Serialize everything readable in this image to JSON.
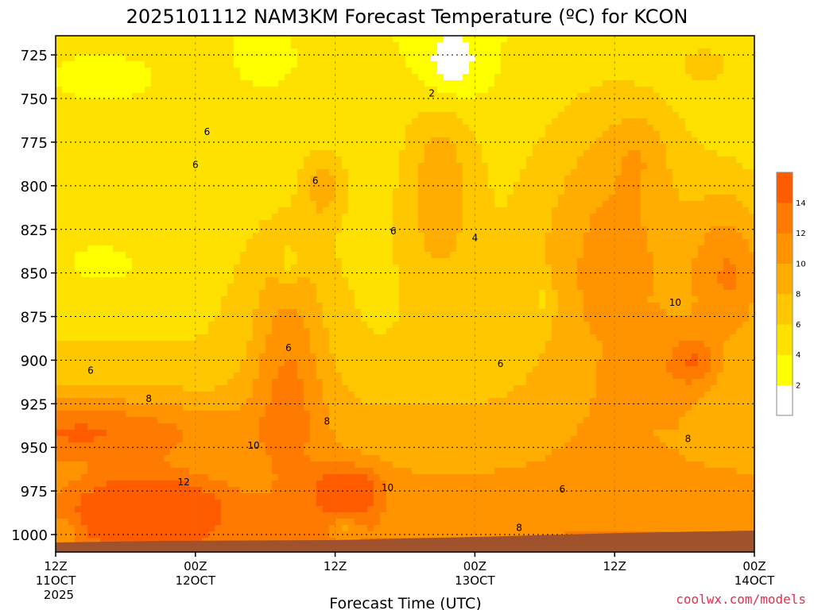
{
  "chart_data": {
    "type": "heatmap",
    "title": "2025101112 NAM3KM Forecast Temperature (ºC) for KCON",
    "xlabel": "Forecast Time (UTC)",
    "ylabel": "",
    "credit": "coolwx.com/models",
    "y_ticks": [
      "725",
      "750",
      "775",
      "800",
      "825",
      "850",
      "875",
      "900",
      "925",
      "950",
      "975",
      "1000"
    ],
    "y_tick_values": [
      725,
      750,
      775,
      800,
      825,
      850,
      875,
      900,
      925,
      950,
      975,
      1000
    ],
    "ylim": [
      1010,
      714
    ],
    "x_ticks": [
      {
        "hour": 0,
        "line1": "12Z",
        "line2": "11OCT",
        "line3": "2025"
      },
      {
        "hour": 12,
        "line1": "00Z",
        "line2": "12OCT",
        "line3": ""
      },
      {
        "hour": 24,
        "line1": "12Z",
        "line2": "",
        "line3": ""
      },
      {
        "hour": 36,
        "line1": "00Z",
        "line2": "13OCT",
        "line3": ""
      },
      {
        "hour": 48,
        "line1": "12Z",
        "line2": "",
        "line3": ""
      },
      {
        "hour": 60,
        "line1": "00Z",
        "line2": "14OCT",
        "line3": ""
      }
    ],
    "xlim": [
      0,
      60
    ],
    "grid": true,
    "colorbar": {
      "placement": "right",
      "levels": [
        0,
        2,
        4,
        6,
        8,
        10,
        12,
        14,
        16
      ],
      "colors": [
        "#ffffff",
        "#ffff00",
        "#ffe100",
        "#ffc700",
        "#ffad00",
        "#ff9400",
        "#ff7a00",
        "#ff5c00"
      ],
      "tick_labels": [
        "2",
        "4",
        "6",
        "8",
        "10",
        "12",
        "14"
      ]
    },
    "ground_color": "#a0522d",
    "contour_labels": [
      {
        "text": "2",
        "hour": 32.3,
        "pressure": 747
      },
      {
        "text": "4",
        "hour": 36,
        "pressure": 830
      },
      {
        "text": "6",
        "hour": 13,
        "pressure": 769
      },
      {
        "text": "6",
        "hour": 12,
        "pressure": 788
      },
      {
        "text": "6",
        "hour": 22.3,
        "pressure": 797
      },
      {
        "text": "6",
        "hour": 29,
        "pressure": 826
      },
      {
        "text": "6",
        "hour": 20,
        "pressure": 893
      },
      {
        "text": "6",
        "hour": 3,
        "pressure": 906
      },
      {
        "text": "6",
        "hour": 38.2,
        "pressure": 902
      },
      {
        "text": "6",
        "hour": 43.5,
        "pressure": 974
      },
      {
        "text": "8",
        "hour": 8,
        "pressure": 922
      },
      {
        "text": "8",
        "hour": 23.3,
        "pressure": 935
      },
      {
        "text": "8",
        "hour": 39.8,
        "pressure": 996
      },
      {
        "text": "8",
        "hour": 54.3,
        "pressure": 945
      },
      {
        "text": "10",
        "hour": 17,
        "pressure": 949
      },
      {
        "text": "10",
        "hour": 28.5,
        "pressure": 973
      },
      {
        "text": "10",
        "hour": 53.2,
        "pressure": 867
      },
      {
        "text": "12",
        "hour": 11,
        "pressure": 970
      }
    ],
    "blobs": [
      {
        "value": 5.5,
        "hour": 20,
        "pressure": 900,
        "sx": 50,
        "sy": 140
      },
      {
        "value": 5.5,
        "hour": 2,
        "pressure": 940,
        "sx": 180,
        "sy": 40
      },
      {
        "value": 5.5,
        "hour": 48,
        "pressure": 840,
        "sx": 100,
        "sy": 200
      },
      {
        "value": 8.5,
        "hour": 8,
        "pressure": 985,
        "sx": 90,
        "sy": 40
      },
      {
        "value": 7.5,
        "hour": 25,
        "pressure": 975,
        "sx": 40,
        "sy": 30
      },
      {
        "value": 4.5,
        "hour": 33,
        "pressure": 800,
        "sx": 45,
        "sy": 120
      },
      {
        "value": -4,
        "hour": 34,
        "pressure": 730,
        "sx": 40,
        "sy": 50
      },
      {
        "value": 6,
        "hour": 58,
        "pressure": 850,
        "sx": 50,
        "sy": 100
      },
      {
        "value": 4,
        "hour": 55,
        "pressure": 900,
        "sx": 25,
        "sy": 30
      },
      {
        "value": 4,
        "hour": 23,
        "pressure": 800,
        "sx": 25,
        "sy": 45
      },
      {
        "value": 3.5,
        "hour": 8,
        "pressure": 1000,
        "sx": 40,
        "sy": 15
      },
      {
        "value": -3,
        "hour": 1,
        "pressure": 1000,
        "sx": 15,
        "sy": 20
      },
      {
        "value": -2.5,
        "hour": 24.8,
        "pressure": 995,
        "sx": 15,
        "sy": 15
      },
      {
        "value": -2.5,
        "hour": 20,
        "pressure": 845,
        "sx": 15,
        "sy": 30
      },
      {
        "value": -2.5,
        "hour": 42,
        "pressure": 865,
        "sx": 12,
        "sy": 30
      },
      {
        "value": 2,
        "hour": 50,
        "pressure": 780,
        "sx": 35,
        "sy": 50
      },
      {
        "value": -3,
        "hour": 4,
        "pressure": 845,
        "sx": 45,
        "sy": 25
      },
      {
        "value": -2,
        "hour": 4,
        "pressure": 740,
        "sx": 45,
        "sy": 20
      },
      {
        "value": 2.5,
        "hour": 56,
        "pressure": 730,
        "sx": 35,
        "sy": 25
      },
      {
        "value": -2,
        "hour": 18,
        "pressure": 730,
        "sx": 25,
        "sy": 20
      }
    ]
  }
}
